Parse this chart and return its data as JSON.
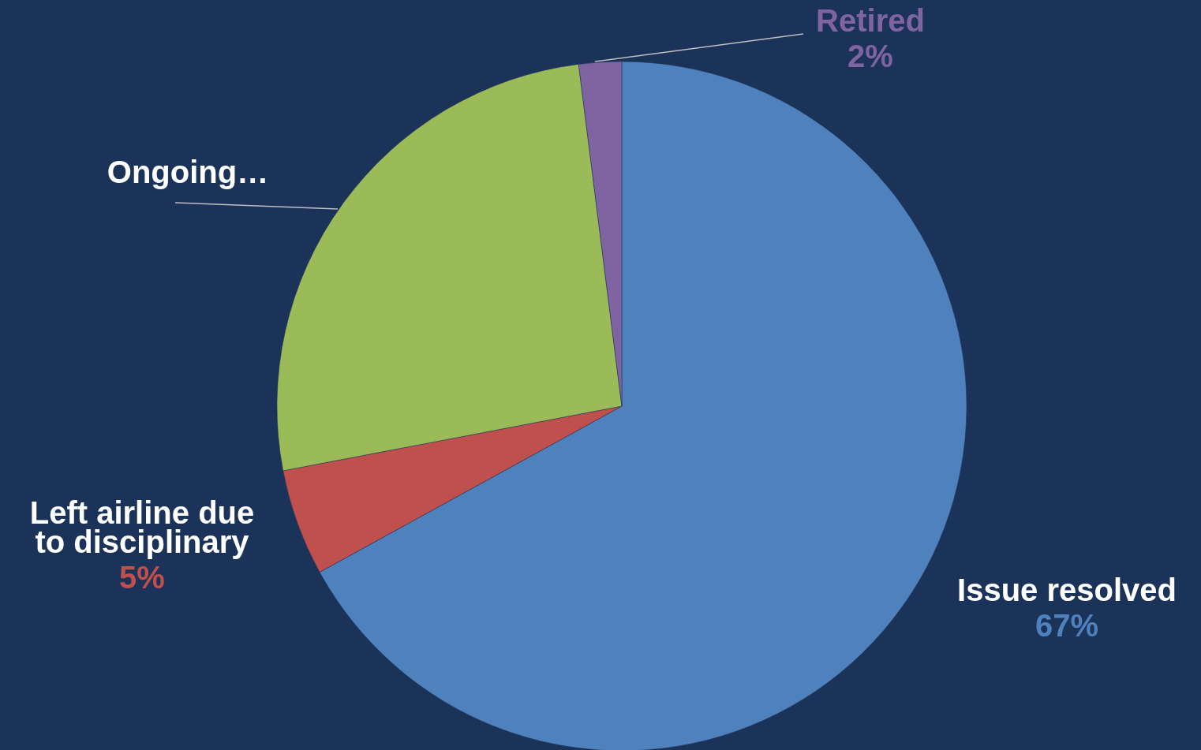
{
  "chart_data": {
    "type": "pie",
    "categories": [
      "Issue resolved",
      "Left airline due to disciplinary",
      "Ongoing…",
      "Retired"
    ],
    "values": [
      67,
      5,
      26,
      2
    ],
    "colors": [
      "#4f81bd",
      "#c0504d",
      "#9bbb59",
      "#8064a2"
    ],
    "value_labels": [
      "67%",
      "5%",
      null,
      "2%"
    ]
  }
}
